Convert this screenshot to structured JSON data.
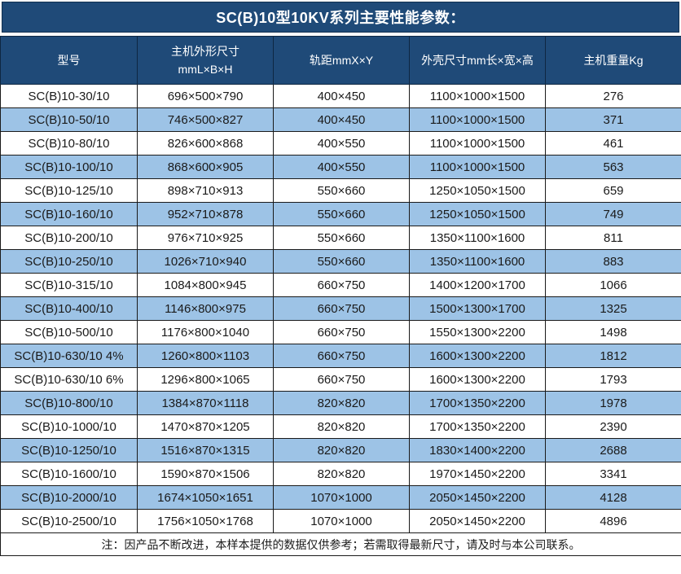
{
  "title": "SC(B)10型10KV系列主要性能参数：",
  "colors": {
    "header_bg": "#1f4a78",
    "header_text": "#ffffff",
    "alt_row_bg": "#9dc3e6",
    "row_bg": "#ffffff",
    "border": "#1a1a1a",
    "cell_text": "#1a1a1a"
  },
  "table": {
    "headers": [
      {
        "id": "model",
        "lines": [
          "型号"
        ]
      },
      {
        "id": "main-unit-dimensions",
        "lines": [
          "主机外形尺寸",
          "mmL×B×H"
        ]
      },
      {
        "id": "track-gauge",
        "lines": [
          "轨距mmX×Y"
        ]
      },
      {
        "id": "shell-dimensions",
        "lines": [
          "外壳尺寸mm长×宽×高"
        ]
      },
      {
        "id": "main-unit-weight",
        "lines": [
          "主机重量Kg"
        ]
      }
    ],
    "rows": [
      [
        "SC(B)10-30/10",
        "696×500×790",
        "400×450",
        "1100×1000×1500",
        "276"
      ],
      [
        "SC(B)10-50/10",
        "746×500×827",
        "400×450",
        "1100×1000×1500",
        "371"
      ],
      [
        "SC(B)10-80/10",
        "826×600×868",
        "400×550",
        "1100×1000×1500",
        "461"
      ],
      [
        "SC(B)10-100/10",
        "868×600×905",
        "400×550",
        "1100×1000×1500",
        "563"
      ],
      [
        "SC(B)10-125/10",
        "898×710×913",
        "550×660",
        "1250×1050×1500",
        "659"
      ],
      [
        "SC(B)10-160/10",
        "952×710×878",
        "550×660",
        "1250×1050×1500",
        "749"
      ],
      [
        "SC(B)10-200/10",
        "976×710×925",
        "550×660",
        "1350×1100×1600",
        "811"
      ],
      [
        "SC(B)10-250/10",
        "1026×710×940",
        "550×660",
        "1350×1100×1600",
        "883"
      ],
      [
        "SC(B)10-315/10",
        "1084×800×945",
        "660×750",
        "1400×1200×1700",
        "1066"
      ],
      [
        "SC(B)10-400/10",
        "1146×800×975",
        "660×750",
        "1500×1300×1700",
        "1325"
      ],
      [
        "SC(B)10-500/10",
        "1176×800×1040",
        "660×750",
        "1550×1300×2200",
        "1498"
      ],
      [
        "SC(B)10-630/10 4%",
        "1260×800×1103",
        "660×750",
        "1600×1300×2200",
        "1812"
      ],
      [
        "SC(B)10-630/10 6%",
        "1296×800×1065",
        "660×750",
        "1600×1300×2200",
        "1793"
      ],
      [
        "SC(B)10-800/10",
        "1384×870×1118",
        "820×820",
        "1700×1350×2200",
        "1978"
      ],
      [
        "SC(B)10-1000/10",
        "1470×870×1205",
        "820×820",
        "1700×1350×2200",
        "2390"
      ],
      [
        "SC(B)10-1250/10",
        "1516×870×1315",
        "820×820",
        "1830×1400×2200",
        "2688"
      ],
      [
        "SC(B)10-1600/10",
        "1590×870×1506",
        "820×820",
        "1970×1450×2200",
        "3341"
      ],
      [
        "SC(B)10-2000/10",
        "1674×1050×1651",
        "1070×1000",
        "2050×1450×2200",
        "4128"
      ],
      [
        "SC(B)10-2500/10",
        "1756×1050×1768",
        "1070×1000",
        "2050×1450×2200",
        "4896"
      ]
    ],
    "footnote": "注：因产品不断改进，本样本提供的数据仅供参考；若需取得最新尺寸，请及时与本公司联系。"
  }
}
